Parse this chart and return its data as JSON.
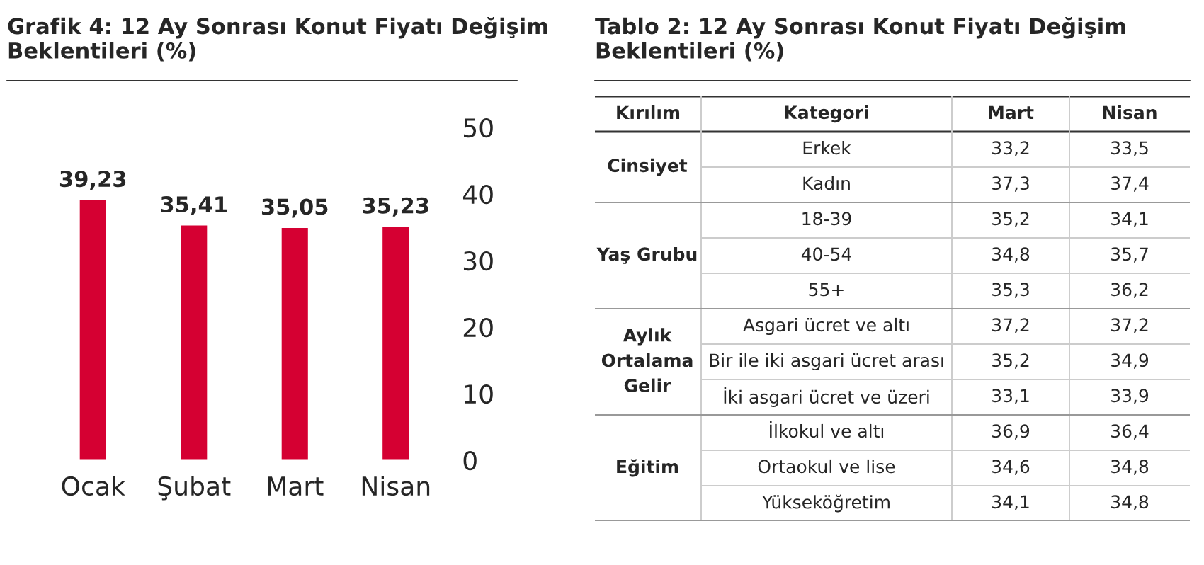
{
  "chart_data": [
    {
      "type": "bar",
      "title": "Grafik 4: 12 Ay Sonrası Konut Fiyatı Değişim\nBeklentileri (%)",
      "categories": [
        "Ocak",
        "Şubat",
        "Mart",
        "Nisan"
      ],
      "values": [
        39.23,
        35.41,
        35.05,
        35.23
      ],
      "value_labels": [
        "39,23",
        "35,41",
        "35,05",
        "35,23"
      ],
      "color": "#d50032",
      "ylim": [
        0,
        50
      ],
      "yticks": [
        0,
        10,
        20,
        30,
        40,
        50
      ],
      "grid": false,
      "legend": false
    },
    {
      "type": "other",
      "title": "Tablo 2: 12 Ay Sonrası Konut Fiyatı Değişim\nBeklentileri (%)",
      "annotations": [
        "Kırılım",
        "Kategori",
        "Mart",
        "Nisan",
        "Cinsiyet",
        "Yaş Grubu",
        "Aylık\nOrtalama\nGelir",
        "Eğitim",
        "Erkek",
        "33,2",
        "33,5",
        "Kadın",
        "37,3",
        "37,4",
        "18-39",
        "35,2",
        "34,1",
        "40-54",
        "34,8",
        "35,7",
        "55+",
        "35,3",
        "36,2",
        "Asgari ücret ve altı",
        "37,2",
        "37,2",
        "Bir ile iki asgari ücret arası",
        "35,2",
        "34,9",
        "İki asgari ücret ve üzeri",
        "33,1",
        "33,9",
        "İlkokul ve altı",
        "36,9",
        "36,4",
        "Ortaokul ve lise",
        "34,6",
        "34,8",
        "Yükseköğretim",
        "34,1",
        "34,8"
      ]
    }
  ]
}
